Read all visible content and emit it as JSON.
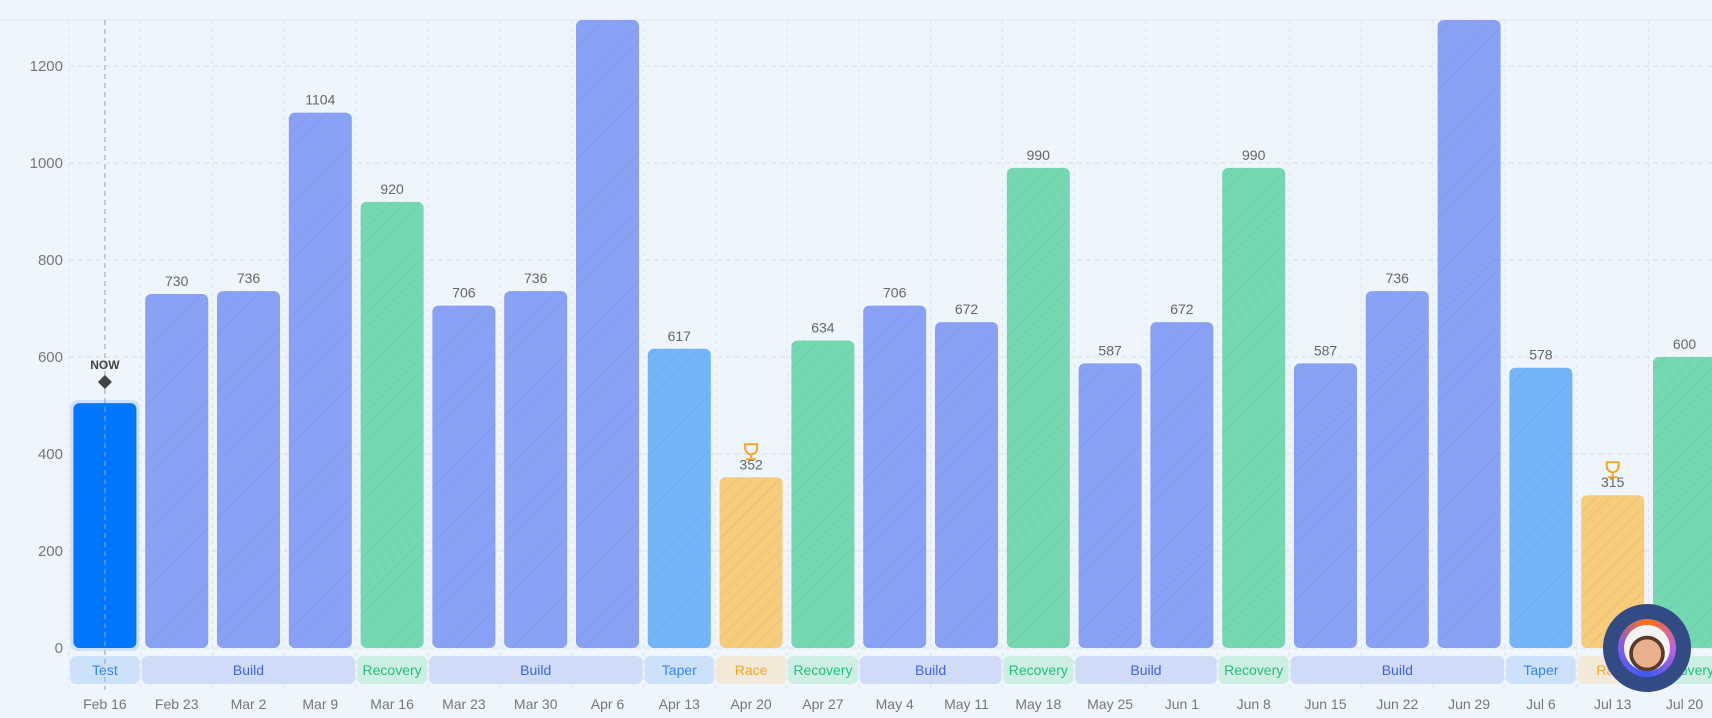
{
  "chart_data": {
    "type": "bar",
    "title": "",
    "xlabel": "",
    "ylabel": "",
    "ylim": [
      0,
      1295
    ],
    "yticks": [
      0,
      200,
      400,
      600,
      800,
      1000,
      1200
    ],
    "grid": true,
    "categories": [
      "Feb 16",
      "Feb 23",
      "Mar 2",
      "Mar 9",
      "Mar 16",
      "Mar 23",
      "Mar 30",
      "Apr 6",
      "Apr 13",
      "Apr 20",
      "Apr 27",
      "May 4",
      "May 11",
      "May 18",
      "May 25",
      "Jun 1",
      "Jun 8",
      "Jun 15",
      "Jun 22",
      "Jun 29",
      "Jul 6",
      "Jul 13",
      "Jul 20"
    ],
    "values": [
      505,
      730,
      736,
      1104,
      920,
      706,
      736,
      null,
      617,
      352,
      634,
      706,
      672,
      990,
      587,
      672,
      990,
      587,
      736,
      null,
      578,
      315,
      600
    ],
    "value_labels_shown": [
      false,
      true,
      true,
      true,
      true,
      true,
      true,
      false,
      true,
      true,
      true,
      true,
      true,
      true,
      true,
      true,
      true,
      true,
      true,
      false,
      true,
      true,
      true
    ],
    "phases": [
      "Test",
      "Build",
      "Build",
      "Build",
      "Recovery",
      "Build",
      "Build",
      "Build",
      "Taper",
      "Race",
      "Recovery",
      "Build",
      "Build",
      "Recovery",
      "Build",
      "Build",
      "Recovery",
      "Build",
      "Build",
      "Build",
      "Taper",
      "Race",
      "Recovery"
    ],
    "phase_bands": [
      {
        "label": "Test",
        "start": 0,
        "end": 0
      },
      {
        "label": "Build",
        "start": 1,
        "end": 3
      },
      {
        "label": "Recovery",
        "start": 4,
        "end": 4
      },
      {
        "label": "Build",
        "start": 5,
        "end": 7
      },
      {
        "label": "Taper",
        "start": 8,
        "end": 8
      },
      {
        "label": "Race",
        "start": 9,
        "end": 9
      },
      {
        "label": "Recovery",
        "start": 10,
        "end": 10
      },
      {
        "label": "Build",
        "start": 11,
        "end": 12
      },
      {
        "label": "Recovery",
        "start": 13,
        "end": 13
      },
      {
        "label": "Build",
        "start": 14,
        "end": 15
      },
      {
        "label": "Recovery",
        "start": 16,
        "end": 16
      },
      {
        "label": "Build",
        "start": 17,
        "end": 19
      },
      {
        "label": "Taper",
        "start": 20,
        "end": 20
      },
      {
        "label": "Race",
        "start": 21,
        "end": 21
      },
      {
        "label": "Recovery",
        "start": 22,
        "end": 22
      }
    ],
    "now_marker": {
      "label": "NOW",
      "index": 0
    },
    "race_icon": "trophy-icon"
  },
  "colors": {
    "Test": {
      "bar": "#0077ff",
      "band": "#cde2fa",
      "text": "#2f86f0"
    },
    "Build": {
      "bar": "#8aa2f5",
      "band": "#d0dcf7",
      "text": "#3f63e8"
    },
    "Recovery": {
      "bar": "#74d9b1",
      "band": "#cdeee2",
      "text": "#22c07a"
    },
    "Taper": {
      "bar": "#74b5f7",
      "band": "#cde2fa",
      "text": "#2f86f0"
    },
    "Race": {
      "bar": "#f7cd7b",
      "band": "#f3e9d8",
      "text": "#f5a623"
    }
  }
}
